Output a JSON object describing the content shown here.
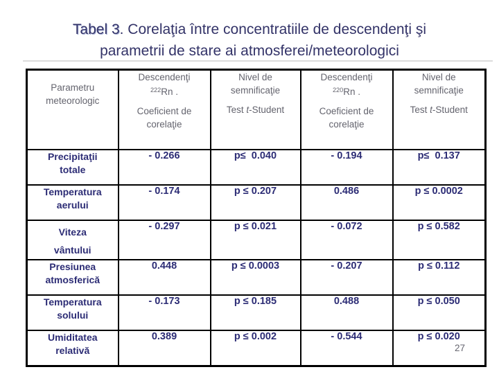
{
  "title": {
    "part1": "Tabel 3",
    "part2": ". Corelaţia între concentratiile de descendenţi şi",
    "line2": "parametrii de stare ai atmosferei/meteorologici"
  },
  "colors": {
    "title_text": "#333368",
    "header_text": "#64646E",
    "data_text": "#2C2C75",
    "border": "#000000",
    "divider_line": "#DCDCDC"
  },
  "table": {
    "header": {
      "col1": "Parametru\nmeteorologic",
      "col2": {
        "line1": "Descendenţi",
        "isotope_sup": "222",
        "isotope_rest": "Rn .",
        "line2": "Coeficient de\ncorelaţie"
      },
      "col3": {
        "line1": "Nivel de\nsemnificaţie",
        "test_prefix": "Test ",
        "test_italic": "t",
        "test_suffix": "-Student"
      },
      "col4": {
        "line1": "Descendenţi",
        "isotope_sup": "220",
        "isotope_rest": "Rn .",
        "line2": "Coeficient de\ncorelaţie"
      },
      "col5": {
        "line1": "Nivel de\nsemnificaţie",
        "test_prefix": "Test ",
        "test_italic": "t",
        "test_suffix": "-Student"
      }
    },
    "rows": [
      {
        "param": "Precipitaţii\ntotale",
        "coef222": "- 0.266",
        "p222": "p≤  0.040",
        "coef220": "- 0.194",
        "p220": "p≤  0.137"
      },
      {
        "param": "Temperatura\naerului",
        "coef222": "- 0.174",
        "p222": "p ≤ 0.207",
        "coef220": "0.486",
        "p220": "p ≤ 0.0002"
      },
      {
        "param": "Viteza\nvântului",
        "coef222": "- 0.297",
        "p222": "p ≤ 0.021",
        "coef220": "- 0.072",
        "p220": "p ≤ 0.582"
      },
      {
        "param": "Presiunea\natmosferică",
        "coef222": "0.448",
        "p222": "p ≤ 0.0003",
        "coef220": "- 0.207",
        "p220": "p ≤ 0.112"
      },
      {
        "param": "Temperatura\nsolului",
        "coef222": "- 0.173",
        "p222": "p ≤ 0.185",
        "coef220": "0.488",
        "p220": "p ≤ 0.050"
      },
      {
        "param": "Umiditatea\nrelativă",
        "coef222": "0.389",
        "p222": "p ≤ 0.002",
        "coef220": "- 0.544",
        "p220": "p ≤ 0.020"
      }
    ]
  },
  "page_number": "27"
}
